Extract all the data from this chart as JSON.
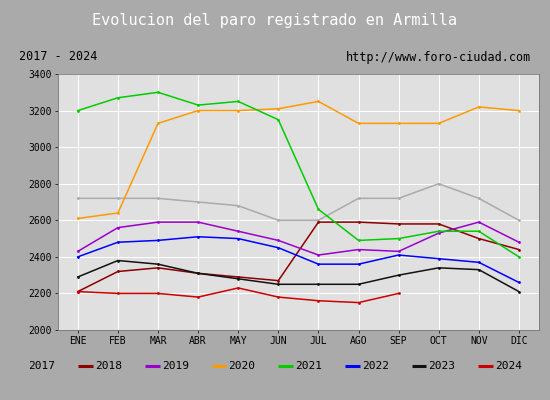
{
  "title": "Evolucion del paro registrado en Armilla",
  "subtitle_left": "2017 - 2024",
  "subtitle_right": "http://www.foro-ciudad.com",
  "ylim": [
    2000,
    3400
  ],
  "yticks": [
    2000,
    2200,
    2400,
    2600,
    2800,
    3000,
    3200,
    3400
  ],
  "months": [
    "ENE",
    "FEB",
    "MAR",
    "ABR",
    "MAY",
    "JUN",
    "JUL",
    "AGO",
    "SEP",
    "OCT",
    "NOV",
    "DIC"
  ],
  "title_bg_color": "#4f81bd",
  "title_text_color": "#ffffff",
  "subtitle_bg_color": "#cccccc",
  "plot_bg_color": "#e0e0e0",
  "grid_color": "#ffffff",
  "fig_bg_color": "#aaaaaa",
  "legend_bg_color": "#f0f0f0",
  "series": [
    {
      "label": "2017",
      "color": "#aaaaaa",
      "data": [
        2720,
        2720,
        2720,
        2700,
        2680,
        2600,
        2600,
        2720,
        2720,
        2800,
        2720,
        2600
      ]
    },
    {
      "label": "2018",
      "color": "#8b0000",
      "data": [
        2210,
        2320,
        2340,
        2310,
        2290,
        2270,
        2590,
        2590,
        2580,
        2580,
        2500,
        2440
      ]
    },
    {
      "label": "2019",
      "color": "#9900cc",
      "data": [
        2430,
        2560,
        2590,
        2590,
        2540,
        2490,
        2410,
        2440,
        2430,
        2530,
        2590,
        2480
      ]
    },
    {
      "label": "2020",
      "color": "#ff9900",
      "data": [
        2610,
        2640,
        3130,
        3200,
        3200,
        3210,
        3250,
        3130,
        3130,
        3130,
        3220,
        3200
      ]
    },
    {
      "label": "2021",
      "color": "#00cc00",
      "data": [
        3200,
        3270,
        3300,
        3230,
        3250,
        3150,
        2660,
        2490,
        2500,
        2540,
        2540,
        2400
      ]
    },
    {
      "label": "2022",
      "color": "#0000ff",
      "data": [
        2400,
        2480,
        2490,
        2510,
        2500,
        2450,
        2360,
        2360,
        2410,
        2390,
        2370,
        2260
      ]
    },
    {
      "label": "2023",
      "color": "#111111",
      "data": [
        2290,
        2380,
        2360,
        2310,
        2280,
        2250,
        2250,
        2250,
        2300,
        2340,
        2330,
        2210
      ]
    },
    {
      "label": "2024",
      "color": "#cc0000",
      "data": [
        2210,
        2200,
        2200,
        2180,
        2230,
        2180,
        2160,
        2150,
        2200,
        null,
        null,
        null
      ]
    }
  ]
}
